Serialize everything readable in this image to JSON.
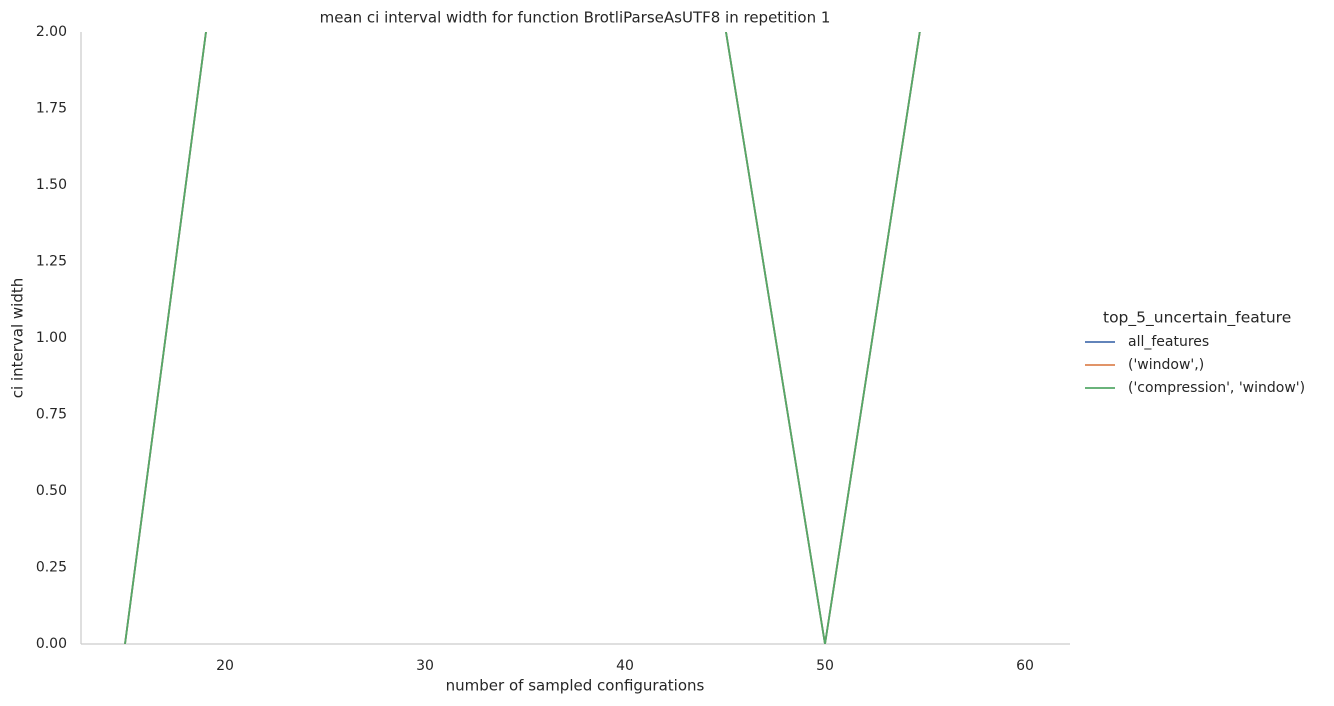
{
  "chart_data": {
    "type": "line",
    "title": "mean ci interval width for function BrotliParseAsUTF8 in repetition 1",
    "xlabel": "number of sampled configurations",
    "ylabel": "ci interval width",
    "legend_title": "top_5_uncertain_feature",
    "x": [
      15,
      20,
      45,
      50,
      55
    ],
    "series": [
      {
        "name": "all_features",
        "color": "#4c72b0",
        "values": [
          0,
          2.47,
          2.02,
          0,
          2.11
        ]
      },
      {
        "name": "('window',)",
        "color": "#dd8452",
        "values": [
          0,
          2.47,
          2.02,
          0,
          2.11
        ]
      },
      {
        "name": "('compression', 'window')",
        "color": "#55a868",
        "values": [
          0,
          2.47,
          2.02,
          0,
          2.11
        ]
      }
    ],
    "xlim": [
      12.8,
      62.25
    ],
    "ylim": [
      0,
      2
    ],
    "xticks": [
      20,
      30,
      40,
      50,
      60
    ],
    "yticks": [
      {
        "value": 0,
        "label": "0.00"
      },
      {
        "value": 0.25,
        "label": "0.25"
      },
      {
        "value": 0.5,
        "label": "0.50"
      },
      {
        "value": 0.75,
        "label": "0.75"
      },
      {
        "value": 1,
        "label": "1.00"
      },
      {
        "value": 1.25,
        "label": "1.25"
      },
      {
        "value": 1.5,
        "label": "1.50"
      },
      {
        "value": 1.75,
        "label": "1.75"
      },
      {
        "value": 2,
        "label": "2.00"
      }
    ],
    "legend_position": "right"
  }
}
